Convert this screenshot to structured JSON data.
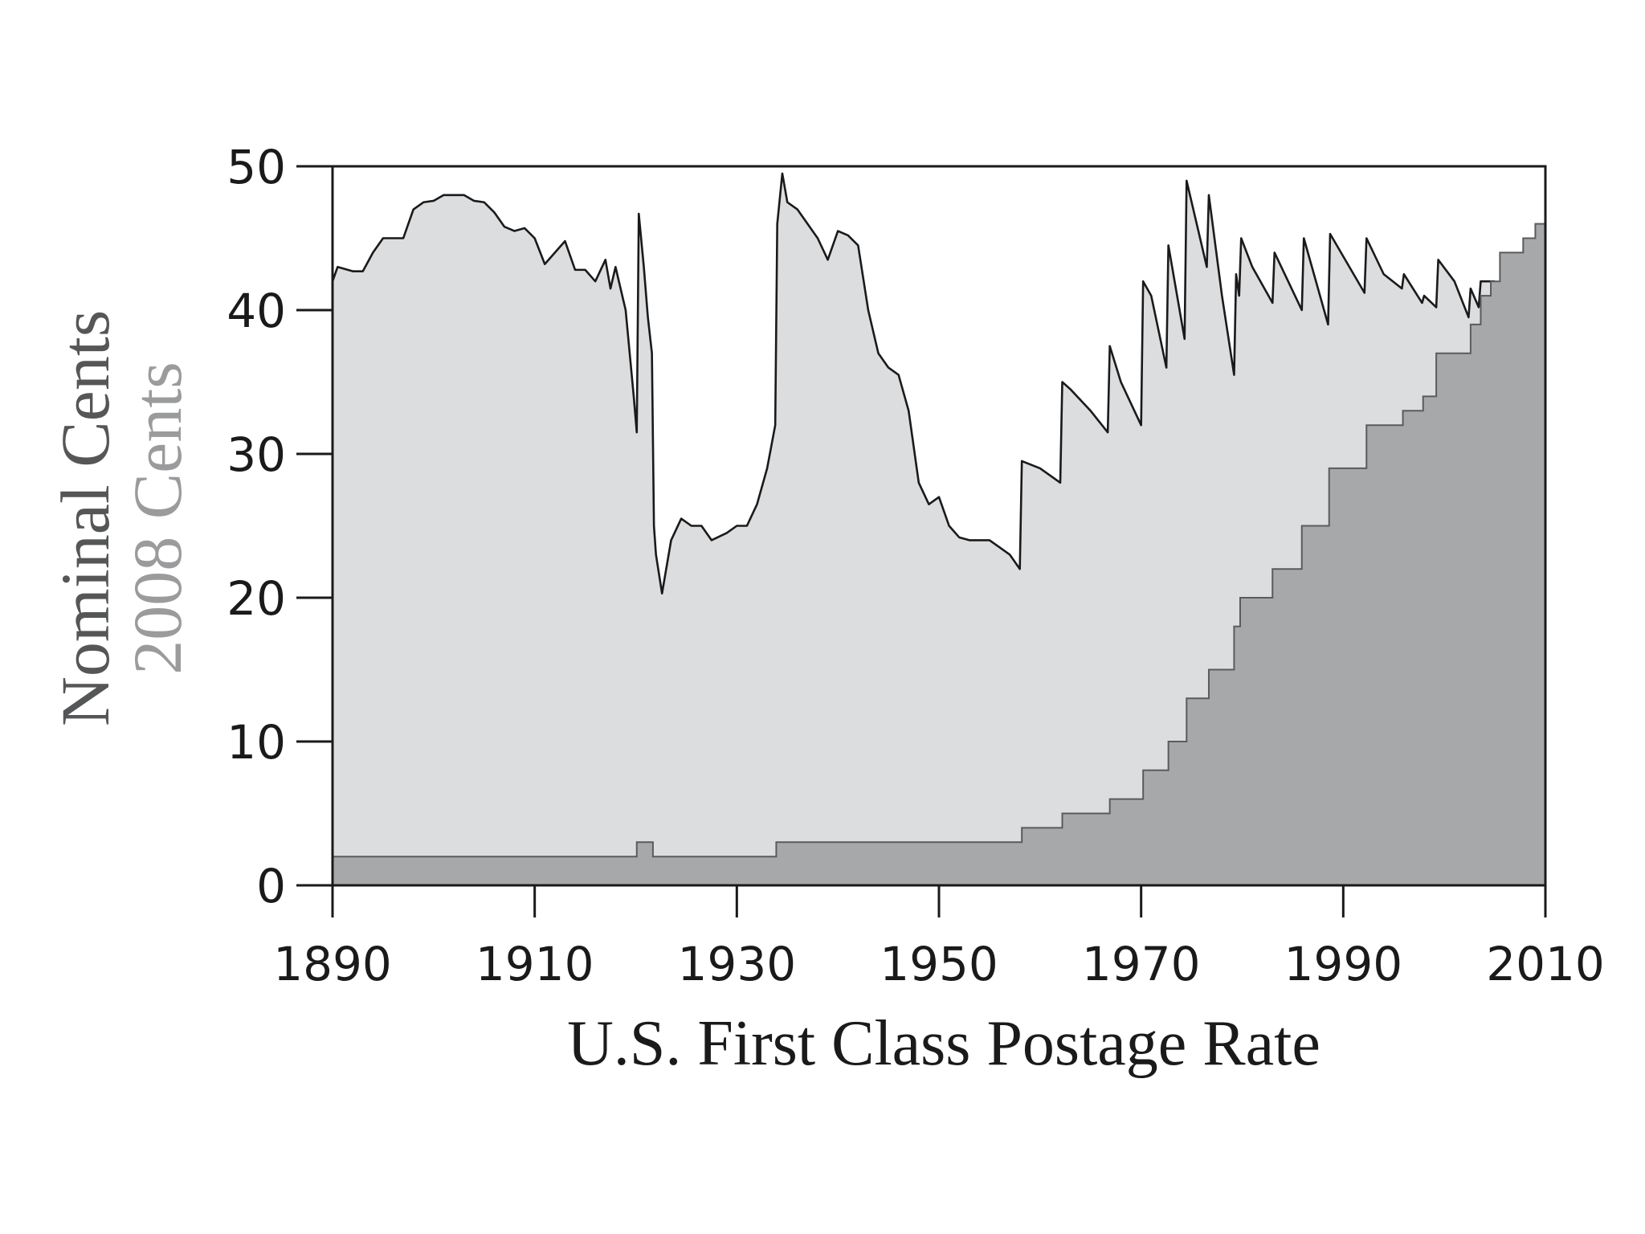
{
  "chart_data": {
    "type": "area",
    "title": "U.S. First Class Postage Rate",
    "xlim": [
      1890,
      2010
    ],
    "xticks": [
      1890,
      1910,
      1930,
      1950,
      1970,
      1990,
      2010
    ],
    "ylim": [
      0,
      50
    ],
    "yticks": [
      0,
      10,
      20,
      30,
      40,
      50
    ],
    "series": [
      {
        "name": "2008 Cents",
        "color": "#dcdddf",
        "line_color": "#1a1a1a",
        "x": [
          1890,
          1890.5,
          1892,
          1893,
          1894,
          1895,
          1897,
          1898,
          1899,
          1900,
          1901,
          1903,
          1904,
          1905,
          1906,
          1907,
          1908,
          1909,
          1910,
          1911,
          1913,
          1914,
          1915,
          1916,
          1917,
          1917.5,
          1918,
          1918.5,
          1919,
          1919.8,
          1920.1,
          1920.3,
          1920.8,
          1921.2,
          1921.6,
          1921.8,
          1922,
          1922.6,
          1923.5,
          1924.5,
          1925.5,
          1926.5,
          1927.5,
          1929,
          1930,
          1931,
          1932,
          1933,
          1933.8,
          1934,
          1934.5,
          1935,
          1936,
          1937,
          1938,
          1939,
          1940,
          1941,
          1942,
          1943,
          1944,
          1945,
          1946,
          1947,
          1948,
          1949,
          1950,
          1951,
          1952,
          1953,
          1955,
          1956,
          1957,
          1958,
          1958.2,
          1960,
          1962,
          1962.2,
          1963,
          1965,
          1966.7,
          1966.9,
          1968,
          1970,
          1970.2,
          1971,
          1972.5,
          1972.7,
          1974.3,
          1974.5,
          1975.5,
          1976.5,
          1976.7,
          1978,
          1979.2,
          1979.4,
          1979.7,
          1979.9,
          1981,
          1983,
          1983.2,
          1985.9,
          1986.1,
          1988.5,
          1988.7,
          1992.1,
          1992.3,
          1994,
          1995.8,
          1996,
          1997.8,
          1998,
          1999.2,
          1999.4,
          2001,
          2002.4,
          2002.6,
          2003.4,
          2003.6,
          2005
        ],
        "values": [
          42,
          43,
          42.7,
          42.7,
          44,
          45,
          45,
          47,
          47.5,
          47.6,
          48,
          48,
          47.6,
          47.5,
          46.8,
          45.8,
          45.5,
          45.7,
          45,
          43.2,
          44.8,
          42.8,
          42.8,
          42,
          43.5,
          41.5,
          43,
          41.5,
          40,
          34,
          31.5,
          46.7,
          43,
          39.5,
          37,
          25,
          23,
          20.3,
          24,
          25.5,
          25,
          25,
          24,
          24.5,
          25,
          25,
          26.5,
          29,
          32,
          46,
          49.5,
          47.5,
          47,
          46,
          45,
          43.5,
          45.5,
          45.2,
          44.5,
          40,
          37,
          36,
          35.5,
          33,
          28,
          26.5,
          27,
          25,
          24.2,
          24,
          24,
          23.5,
          23,
          22,
          29.5,
          29,
          28,
          35,
          34.5,
          33,
          31.5,
          37.5,
          35,
          32,
          42,
          41,
          36,
          44.5,
          38,
          49,
          46,
          43,
          48,
          41,
          35.5,
          42.5,
          41,
          45,
          43,
          40.5,
          44,
          40,
          45,
          39,
          45.3,
          41.2,
          45,
          42.5,
          41.5,
          42.5,
          40.5,
          41,
          40.2,
          43.5,
          42,
          39.5,
          41.5,
          40.2,
          42,
          42
        ]
      },
      {
        "name": "Nominal Cents",
        "color": "#a7a8aa",
        "step": true,
        "x": [
          1890,
          1920.1,
          1921.7,
          1933.9,
          1958.2,
          1962.2,
          1966.9,
          1970.2,
          1972.7,
          1974.5,
          1976.7,
          1979.2,
          1979.8,
          1983,
          1985.9,
          1988.6,
          1992.3,
          1995.9,
          1997.9,
          1999.2,
          2002.6,
          2003.6,
          2004.6,
          2005.5,
          2007.8,
          2009
        ],
        "values": [
          2,
          3,
          2,
          3,
          4,
          5,
          6,
          8,
          10,
          13,
          15,
          18,
          20,
          22,
          25,
          29,
          32,
          33,
          34,
          37,
          39,
          41,
          42,
          44,
          45,
          46
        ]
      }
    ]
  }
}
